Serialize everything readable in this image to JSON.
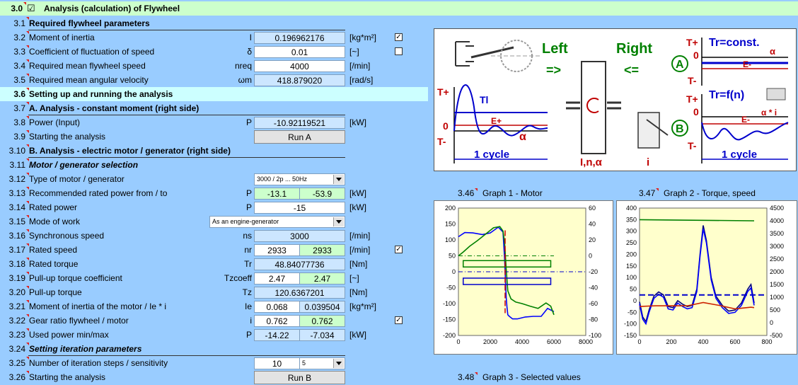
{
  "header": {
    "num": "3.0",
    "title": "Analysis (calculation) of Flywheel",
    "checked": "☑"
  },
  "rows": {
    "r31": {
      "num": "3.1",
      "label": "Required flywheel parameters"
    },
    "r32": {
      "num": "3.2",
      "label": "Moment of inertia",
      "sym": "I",
      "value": "0.196962176",
      "unit": "[kg*m²]",
      "check": "✓"
    },
    "r33": {
      "num": "3.3",
      "label": "Coefficient of fluctuation of speed",
      "sym": "δ",
      "value": "0.01",
      "unit": "[~]"
    },
    "r34": {
      "num": "3.4",
      "label": "Required mean flywheel speed",
      "sym": "nreq",
      "value": "4000",
      "unit": "[/min]"
    },
    "r35": {
      "num": "3.5",
      "label": "Required mean angular velocity",
      "sym": "ωm",
      "value": "418.879020",
      "unit": "[rad/s]"
    },
    "r36": {
      "num": "3.6",
      "label": "Setting up and running the analysis"
    },
    "r37": {
      "num": "3.7",
      "label": "A. Analysis - constant moment (right side)"
    },
    "r38": {
      "num": "3.8",
      "label": "Power (Input)",
      "sym": "P",
      "value": "-10.92119521",
      "unit": "[kW]"
    },
    "r39": {
      "num": "3.9",
      "label": "Starting the analysis",
      "button": "Run A"
    },
    "r310": {
      "num": "3.10",
      "label": "B. Analysis - electric motor / generator (right side)"
    },
    "r311": {
      "num": "3.11",
      "label": "Motor / generator selection"
    },
    "r312": {
      "num": "3.12",
      "label": "Type of motor / generator",
      "select": "3000 / 2p ... 50Hz"
    },
    "r313": {
      "num": "3.13",
      "label": "Recommended rated power from / to",
      "sym": "P",
      "v1": "-13.1",
      "v2": "-53.9",
      "unit": "[kW]"
    },
    "r314": {
      "num": "3.14",
      "label": "Rated power",
      "sym": "P",
      "value": "-15",
      "unit": "[kW]"
    },
    "r315": {
      "num": "3.15",
      "label": "Mode of work",
      "select": "As an engine-generator"
    },
    "r316": {
      "num": "3.16",
      "label": "Synchronous speed",
      "sym": "ns",
      "value": "3000",
      "unit": "[/min]"
    },
    "r317": {
      "num": "3.17",
      "label": "Rated speed",
      "sym": "nr",
      "v1": "2933",
      "v2": "2933",
      "unit": "[/min]",
      "check": "✓"
    },
    "r318": {
      "num": "3.18",
      "label": "Rated torque",
      "sym": "Tr",
      "value": "48.84077736",
      "unit": "[Nm]"
    },
    "r319": {
      "num": "3.19",
      "label": "Pull-up torque coefficient",
      "sym": "Tzcoeff",
      "v1": "2.47",
      "v2": "2.47",
      "unit": "[~]"
    },
    "r320": {
      "num": "3.20",
      "label": "Pull-up torque",
      "sym": "Tz",
      "value": "120.6367201",
      "unit": "[Nm]"
    },
    "r321": {
      "num": "3.21",
      "label": "Moment of inertia of the motor / Ie * i",
      "sym": "Ie",
      "v1": "0.068",
      "v2": "0.039504",
      "unit": "[kg*m²]"
    },
    "r322": {
      "num": "3.22",
      "label": "Gear ratio flywheel / motor",
      "sym": "i",
      "v1": "0.762",
      "v2": "0.762",
      "check": "✓"
    },
    "r323": {
      "num": "3.23",
      "label": "Used power min/max",
      "sym": "P",
      "v1": "-14.22",
      "v2": "-7.034",
      "unit": "[kW]"
    },
    "r324": {
      "num": "3.24",
      "label": "Setting iteration parameters"
    },
    "r325": {
      "num": "3.25",
      "label": "Number of iteration steps / sensitivity",
      "v1": "10",
      "select": "5"
    },
    "r326": {
      "num": "3.26",
      "label": "Starting the analysis",
      "button": "Run B"
    }
  },
  "diagram": {
    "left": "Left",
    "right": "Right",
    "arrow_left": "=>",
    "arrow_right": "<=",
    "tplus": "T+",
    "tminus": "T-",
    "zero": "0",
    "tl": "Tl",
    "eplus": "E+",
    "eminus": "E-",
    "alpha": "α",
    "alpha_i": "α * i",
    "cycle": "1 cycle",
    "in_alpha": "I,n,α",
    "i": "i",
    "tr_const": "Tr=const.",
    "tr_fn": "Tr=f(n)",
    "a": "A",
    "b": "B"
  },
  "graphs": {
    "g1": {
      "num": "3.46",
      "title": "Graph 1 - Motor"
    },
    "g2": {
      "num": "3.47",
      "title": "Graph 2 - Torque, speed"
    },
    "g3": {
      "num": "3.48",
      "title": "Graph 3 - Selected values"
    }
  },
  "chart_data": [
    {
      "type": "line",
      "title": "Graph 1 - Motor",
      "x_ticks": [
        "0",
        "2000",
        "4000",
        "6000",
        "8000"
      ],
      "xlim": [
        0,
        8000
      ],
      "y_left_ticks": [
        "200",
        "150",
        "100",
        "50",
        "0",
        "-50",
        "-100",
        "-150",
        "-200"
      ],
      "ylim_left": [
        -200,
        200
      ],
      "y_right_ticks": [
        "60",
        "40",
        "20",
        "0",
        "-20",
        "-40",
        "-60",
        "-80",
        "-100"
      ],
      "ylim_right": [
        -100,
        60
      ],
      "series": [
        {
          "color": "#0000ff",
          "x": [
            0,
            400,
            900,
            1500,
            2000,
            2500,
            2800,
            2900,
            3000,
            3050,
            3100,
            3200,
            3400,
            3700,
            4200,
            4700,
            5200,
            5600,
            6000
          ],
          "y": [
            110,
            123,
            122,
            117,
            122,
            140,
            125,
            40,
            -80,
            -110,
            -135,
            -140,
            -148,
            -148,
            -142,
            -140,
            -140,
            -115,
            -125
          ]
        },
        {
          "color": "#008000",
          "x": [
            0,
            300,
            700,
            1200,
            1700,
            2200,
            2600,
            2800,
            2900,
            3000,
            3100,
            3300,
            3600,
            4000,
            4500,
            5000,
            5500,
            5800,
            6000
          ],
          "y": [
            50,
            62,
            80,
            98,
            118,
            138,
            142,
            128,
            90,
            10,
            -60,
            -85,
            -95,
            -100,
            -108,
            -115,
            -98,
            -108,
            -135
          ]
        }
      ],
      "grid": false,
      "background": "#ffffcc"
    },
    {
      "type": "line",
      "title": "Graph 2 - Torque, speed",
      "x_ticks": [
        "0",
        "200",
        "400",
        "600",
        "800"
      ],
      "xlim": [
        0,
        800
      ],
      "y_left_ticks": [
        "400",
        "350",
        "300",
        "250",
        "200",
        "150",
        "100",
        "50",
        "0",
        "-50",
        "-100",
        "-150"
      ],
      "ylim_left": [
        -150,
        400
      ],
      "y_right_ticks": [
        "4500",
        "4000",
        "3500",
        "3000",
        "2500",
        "2000",
        "1500",
        "1000",
        "500",
        "0",
        "-500"
      ],
      "ylim_right": [
        -500,
        4500
      ],
      "series": [
        {
          "color": "#000080",
          "x": [
            0,
            20,
            40,
            60,
            90,
            120,
            150,
            180,
            210,
            240,
            270,
            300,
            330,
            360,
            380,
            400,
            420,
            450,
            480,
            520,
            560,
            600,
            640,
            680,
            700,
            720
          ],
          "y": [
            -5,
            -70,
            -90,
            -40,
            20,
            38,
            25,
            -25,
            -30,
            0,
            -15,
            -25,
            -20,
            50,
            200,
            325,
            260,
            100,
            20,
            -20,
            -45,
            -40,
            -10,
            50,
            70,
            -10
          ]
        },
        {
          "color": "#0000ff",
          "x": [
            0,
            20,
            40,
            60,
            90,
            120,
            150,
            180,
            210,
            240,
            270,
            300,
            330,
            360,
            380,
            400,
            420,
            450,
            480,
            520,
            560,
            600,
            640,
            680,
            700,
            720
          ],
          "y": [
            -15,
            -80,
            -100,
            -50,
            10,
            28,
            15,
            -35,
            -40,
            -10,
            -25,
            -35,
            -30,
            40,
            190,
            310,
            250,
            90,
            10,
            -30,
            -55,
            -50,
            -20,
            40,
            55,
            -20
          ]
        },
        {
          "color": "#cc2200",
          "x": [
            0,
            100,
            200,
            300,
            400,
            500,
            600,
            700,
            720
          ],
          "y": [
            -25,
            -22,
            -22,
            -22,
            -8,
            -20,
            -35,
            -28,
            -30
          ]
        },
        {
          "color": "#008000",
          "x": [
            0,
            720
          ],
          "y": [
            350,
            345
          ]
        }
      ],
      "grid": false,
      "background": "#ffffcc"
    }
  ]
}
